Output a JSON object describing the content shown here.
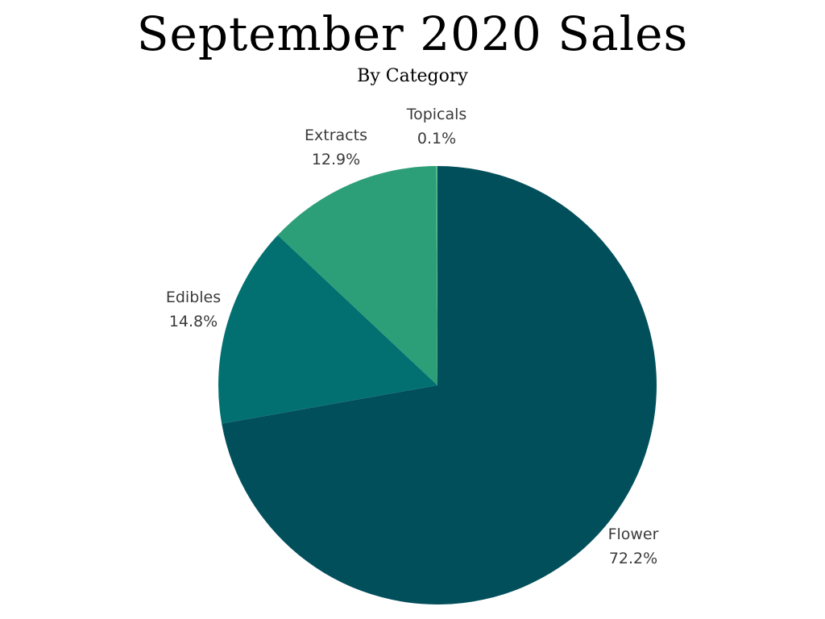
{
  "chart_data": {
    "type": "pie",
    "title": "September 2020 Sales",
    "subtitle": "By Category",
    "slices": [
      {
        "label": "Flower",
        "value_label": "72.2%",
        "value": 72.2,
        "color": "#024F5C"
      },
      {
        "label": "Edibles",
        "value_label": "14.8%",
        "value": 14.8,
        "color": "#027070"
      },
      {
        "label": "Extracts",
        "value_label": "12.9%",
        "value": 12.9,
        "color": "#2C9E78"
      },
      {
        "label": "Topicals",
        "value_label": "0.1%",
        "value": 0.1,
        "color": "#55B88A"
      }
    ],
    "start_angle": "12 o'clock",
    "direction": "clockwise"
  }
}
